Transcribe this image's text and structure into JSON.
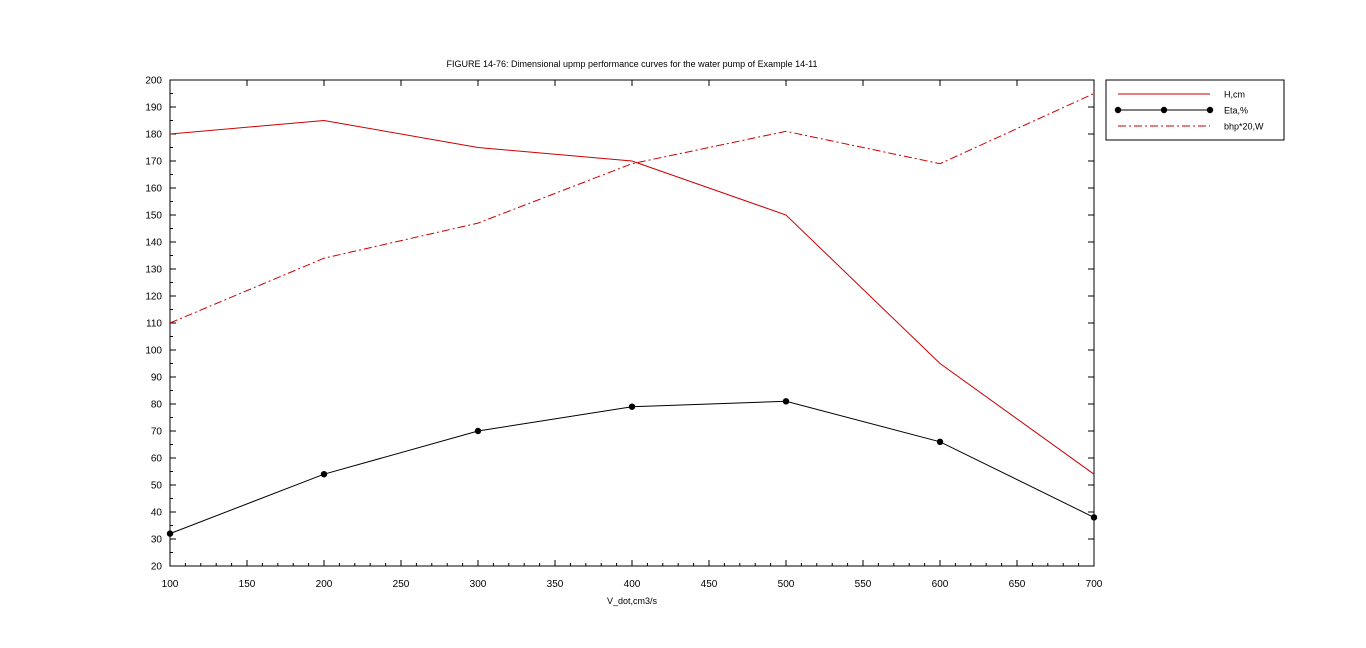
{
  "chart_data": {
    "type": "line",
    "title": "FIGURE 14-76: Dimensional upmp performance curves for the water pump of Example 14-11",
    "xlabel": "V_dot,cm3/s",
    "ylabel": "",
    "xlim": [
      100,
      700
    ],
    "ylim": [
      20,
      200
    ],
    "x_ticks": [
      100,
      150,
      200,
      250,
      300,
      350,
      400,
      450,
      500,
      550,
      600,
      650,
      700
    ],
    "y_ticks": [
      20,
      30,
      40,
      50,
      60,
      70,
      80,
      90,
      100,
      110,
      120,
      130,
      140,
      150,
      160,
      170,
      180,
      190,
      200
    ],
    "x": [
      100,
      200,
      300,
      400,
      500,
      600,
      700
    ],
    "grid": false,
    "legend_position": "outside-right",
    "series": [
      {
        "name": "H,cm",
        "values": [
          180,
          185,
          175,
          170,
          150,
          95,
          54
        ],
        "color": "#cc0000",
        "style": "solid",
        "marker": "none"
      },
      {
        "name": "Eta,%",
        "values": [
          32,
          54,
          70,
          79,
          81,
          66,
          38
        ],
        "color": "#000000",
        "style": "solid",
        "marker": "circle"
      },
      {
        "name": "bhp*20,W",
        "values": [
          110,
          134,
          147,
          169,
          181,
          169,
          195
        ],
        "color": "#cc0000",
        "style": "dashdot",
        "marker": "none"
      }
    ]
  }
}
